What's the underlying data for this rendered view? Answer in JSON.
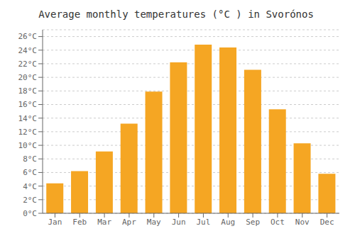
{
  "chart_data": {
    "type": "bar",
    "title": "Average monthly temperatures (°C ) in Svorónos",
    "categories": [
      "Jan",
      "Feb",
      "Mar",
      "Apr",
      "May",
      "Jun",
      "Jul",
      "Aug",
      "Sep",
      "Oct",
      "Nov",
      "Dec"
    ],
    "values": [
      4.4,
      6.2,
      9.1,
      13.2,
      17.9,
      22.2,
      24.8,
      24.4,
      21.1,
      15.3,
      10.3,
      5.8
    ],
    "color": "#F5A623",
    "ylim": [
      0,
      27
    ],
    "yticks": [
      {
        "value": 0,
        "label": "0°C"
      },
      {
        "value": 2,
        "label": "2°C"
      },
      {
        "value": 4,
        "label": "4°C"
      },
      {
        "value": 6,
        "label": "6°C"
      },
      {
        "value": 8,
        "label": "8°C"
      },
      {
        "value": 10,
        "label": "10°C"
      },
      {
        "value": 12,
        "label": "12°C"
      },
      {
        "value": 14,
        "label": "14°C"
      },
      {
        "value": 16,
        "label": "16°C"
      },
      {
        "value": 18,
        "label": "18°C"
      },
      {
        "value": 20,
        "label": "20°C"
      },
      {
        "value": 22,
        "label": "22°C"
      },
      {
        "value": 24,
        "label": "24°C"
      },
      {
        "value": 26,
        "label": "26°C"
      }
    ],
    "grid": true
  }
}
